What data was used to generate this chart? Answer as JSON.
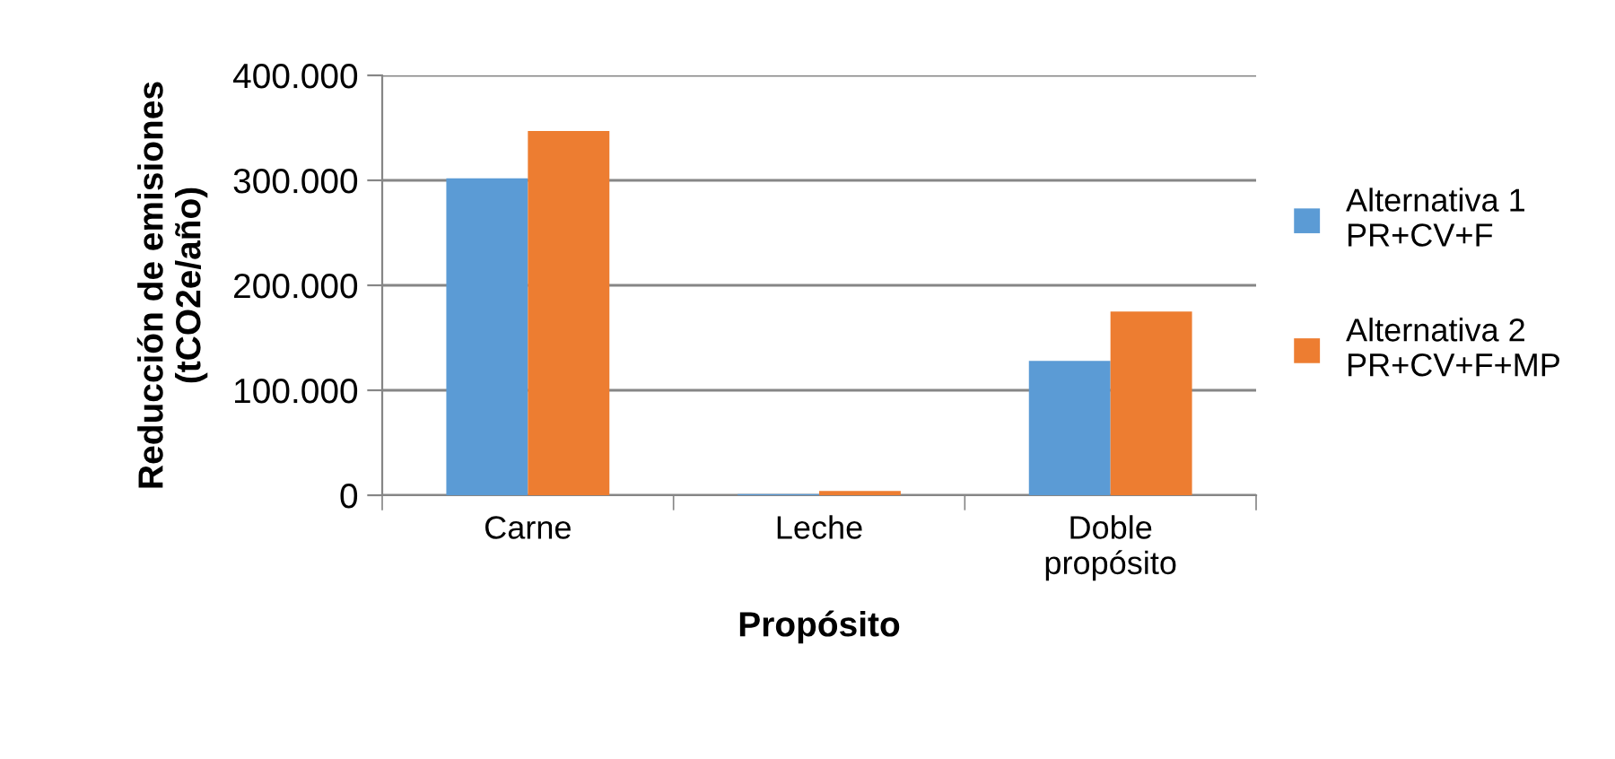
{
  "chart_data": {
    "type": "bar",
    "xlabel": "Propósito",
    "ylabel": "Reducción de emisiones\n(tCO2e/año)",
    "categories": [
      "Carne",
      "Leche",
      "Doble\npropósito"
    ],
    "series": [
      {
        "name": "Alternativa 1 PR+CV+F",
        "color": "#5b9bd5",
        "values": [
          302000,
          1000,
          128000
        ]
      },
      {
        "name": "Alternativa 2 PR+CV+F+MP",
        "color": "#ed7d31",
        "values": [
          347000,
          4000,
          175000
        ]
      }
    ],
    "ylim": [
      0,
      400000
    ],
    "yticks": [
      0,
      {
        "value": 100000,
        "label": "100.000"
      },
      {
        "value": 200000,
        "label": "200.000"
      },
      {
        "value": 300000,
        "label": "300.000"
      },
      {
        "value": 400000,
        "label": "400.000"
      }
    ],
    "grid": "y",
    "legend": "right"
  }
}
